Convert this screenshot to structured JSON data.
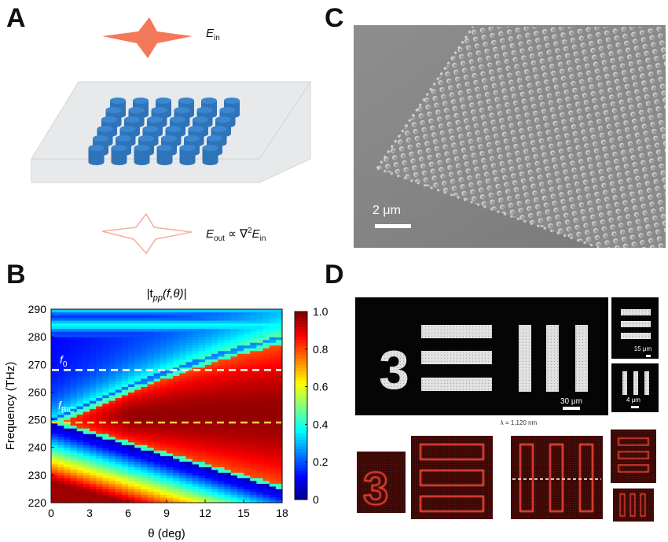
{
  "panels": {
    "a": {
      "letter": "A",
      "e_in": "E",
      "e_in_sub": "in",
      "e_out": "E",
      "e_out_sub": "out",
      "proportional": "∝ ∇",
      "power": "2",
      "e_in2": "E",
      "e_in2_sub": "in",
      "colors": {
        "pillar": "#3a86d0",
        "slab": "#e6e8ea",
        "star_in": "#f4785a",
        "star_out": "#f1b39f"
      }
    },
    "b": {
      "letter": "B",
      "colorbar_ticks": [
        "1.0",
        "0.8",
        "0.6",
        "0.4",
        "0.2",
        "0"
      ],
      "f0_label": "f",
      "f0_sub": "0",
      "fbic_label": "f",
      "fbic_sub": "BIC",
      "f0_line_color": "#ffffff",
      "fbic_line_color": "#f1d046"
    },
    "c": {
      "letter": "C",
      "scalebar": "2 μm"
    },
    "d": {
      "letter": "D",
      "digit": "3",
      "scale_30": "30 μm",
      "scale_15": "15 μm",
      "scale_4": "4 μm",
      "wavelength": "λ = 1,120 nm"
    }
  },
  "chart_data": {
    "type": "heatmap",
    "title": "|t_pp(f,θ)|",
    "title_parts": {
      "t": "|t",
      "sub": "pp",
      "rest": "(f,θ)|"
    },
    "xlabel": "θ (deg)",
    "ylabel": "Frequency (THz)",
    "xlim": [
      0,
      18
    ],
    "ylim": [
      220,
      290
    ],
    "x_ticks": [
      "0",
      "3",
      "6",
      "9",
      "12",
      "15",
      "18"
    ],
    "y_ticks": [
      "220",
      "230",
      "240",
      "250",
      "260",
      "270",
      "280",
      "290"
    ],
    "colorbar": {
      "min": 0,
      "max": 1.0,
      "colormap": "jet"
    },
    "f0_THz": 268,
    "fbic_THz": 249,
    "annotations": [
      "f0",
      "fBIC"
    ]
  }
}
